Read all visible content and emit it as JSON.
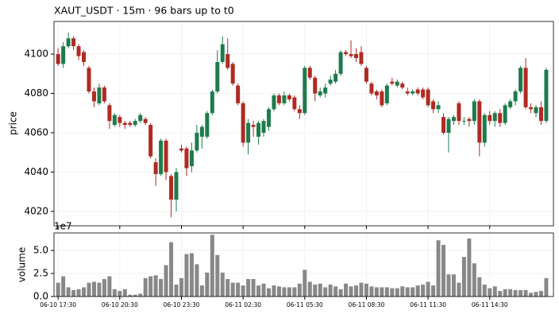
{
  "chart_data": {
    "type": "candlestick",
    "title": "XAUT_USDT  ·  15m  ·  96 bars up to t0",
    "y_label": "price",
    "volume_label": "volume",
    "volume_offset_label": "1e7",
    "categories": [
      "06-10 17:30",
      null,
      null,
      null,
      null,
      null,
      null,
      null,
      null,
      null,
      null,
      null,
      "06-10 20:30",
      null,
      null,
      null,
      null,
      null,
      null,
      null,
      null,
      null,
      null,
      null,
      "06-10 23:30",
      null,
      null,
      null,
      null,
      null,
      null,
      null,
      null,
      null,
      null,
      null,
      "06-11 02:30",
      null,
      null,
      null,
      null,
      null,
      null,
      null,
      null,
      null,
      null,
      null,
      "06-11 05:30",
      null,
      null,
      null,
      null,
      null,
      null,
      null,
      null,
      null,
      null,
      null,
      "06-11 08:30",
      null,
      null,
      null,
      null,
      null,
      null,
      null,
      null,
      null,
      null,
      null,
      "06-11 11:30",
      null,
      null,
      null,
      null,
      null,
      null,
      null,
      null,
      null,
      null,
      null,
      "06-11 14:30",
      null,
      null,
      null,
      null,
      null,
      null,
      null,
      null,
      null,
      null,
      null
    ],
    "open": [
      4100,
      4095,
      4104,
      4108,
      4104,
      4101,
      4093,
      4081,
      4075,
      4083,
      4074,
      4064,
      4068,
      4065,
      4065,
      4064,
      4066,
      4067,
      4064,
      4045,
      4039,
      4056,
      4038,
      4026,
      4052,
      4052,
      4043,
      4051,
      4058,
      4058,
      4070,
      4081,
      4096,
      4100,
      4095,
      4084,
      4075,
      4055,
      4064,
      4058,
      4060,
      4063,
      4072,
      4079,
      4075,
      4079,
      4078,
      4072,
      4070,
      4093,
      4088,
      4079,
      4080,
      4085,
      4086,
      4090,
      4101,
      4100,
      4100,
      4101,
      4093,
      4085,
      4081,
      4081,
      4075,
      4086,
      4084,
      4085,
      4081,
      4080,
      4082,
      4082,
      4082,
      4076,
      4072,
      4068,
      4060,
      4066,
      4075,
      4066,
      4067,
      4066,
      4076,
      4055,
      4069,
      4066,
      4070,
      4065,
      4073,
      4076,
      4081,
      4093,
      4073,
      4070,
      4073,
      4066
    ],
    "high": [
      4103,
      4106,
      4111,
      4109,
      4105,
      4102,
      4094,
      4083,
      4085,
      4084,
      4075,
      4070,
      4069,
      4066,
      4066,
      4067,
      4070,
      4068,
      4065,
      4047,
      4057,
      4057,
      4039,
      4042,
      4054,
      4053,
      4055,
      4064,
      4064,
      4071,
      4082,
      4102,
      4109,
      4108,
      4096,
      4085,
      4076,
      4067,
      4066,
      4066,
      4067,
      4073,
      4080,
      4080,
      4081,
      4080,
      4079,
      4074,
      4094,
      4094,
      4089,
      4083,
      4085,
      4089,
      4092,
      4102,
      4102,
      4107,
      4103,
      4104,
      4094,
      4086,
      4082,
      4082,
      4085,
      4088,
      4087,
      4086,
      4083,
      4082,
      4083,
      4083,
      4083,
      4077,
      4076,
      4070,
      4068,
      4069,
      4076,
      4068,
      4068,
      4077,
      4077,
      4070,
      4071,
      4071,
      4072,
      4075,
      4077,
      4082,
      4094,
      4098,
      4075,
      4074,
      4076,
      4093
    ],
    "low": [
      4094,
      4093,
      4103,
      4102,
      4097,
      4094,
      4080,
      4073,
      4074,
      4075,
      4062,
      4063,
      4063,
      4062,
      4063,
      4063,
      4065,
      4064,
      4047,
      4033,
      4038,
      4036,
      4017,
      4020,
      4050,
      4038,
      4040,
      4050,
      4052,
      4057,
      4069,
      4080,
      4095,
      4092,
      4084,
      4074,
      4053,
      4049,
      4058,
      4054,
      4058,
      4061,
      4071,
      4074,
      4074,
      4076,
      4071,
      4067,
      4069,
      4087,
      4076,
      4078,
      4078,
      4084,
      4085,
      4089,
      4099,
      4098,
      4096,
      4094,
      4085,
      4079,
      4077,
      4073,
      4074,
      4084,
      4083,
      4082,
      4079,
      4079,
      4079,
      4077,
      4073,
      4070,
      4070,
      4059,
      4050,
      4064,
      4064,
      4064,
      4063,
      4064,
      4048,
      4053,
      4064,
      4063,
      4063,
      4064,
      4072,
      4074,
      4080,
      4072,
      4070,
      4068,
      4064,
      4065
    ],
    "close": [
      4095,
      4104,
      4108,
      4104,
      4099,
      4096,
      4081,
      4076,
      4083,
      4076,
      4066,
      4069,
      4065,
      4064,
      4064,
      4066,
      4069,
      4065,
      4048,
      4039,
      4056,
      4040,
      4026,
      4040,
      4051,
      4042,
      4051,
      4060,
      4063,
      4070,
      4081,
      4096,
      4105,
      4093,
      4085,
      4075,
      4055,
      4065,
      4063,
      4065,
      4066,
      4072,
      4079,
      4075,
      4079,
      4077,
      4072,
      4070,
      4093,
      4088,
      4080,
      4081,
      4083,
      4087,
      4090,
      4101,
      4100,
      4099,
      4098,
      4095,
      4086,
      4080,
      4079,
      4074,
      4084,
      4085,
      4086,
      4083,
      4080,
      4081,
      4080,
      4078,
      4074,
      4072,
      4074,
      4060,
      4067,
      4068,
      4066,
      4066,
      4066,
      4076,
      4055,
      4069,
      4066,
      4070,
      4065,
      4074,
      4076,
      4081,
      4093,
      4073,
      4072,
      4073,
      4066,
      4092
    ],
    "volume": [
      1.5,
      2.2,
      1.0,
      0.7,
      0.8,
      1.0,
      1.5,
      1.6,
      1.5,
      1.9,
      2.2,
      0.8,
      0.6,
      0.8,
      0.2,
      0.2,
      0.3,
      2.0,
      2.2,
      2.3,
      1.9,
      3.4,
      5.9,
      1.3,
      2.0,
      4.6,
      4.7,
      3.5,
      1.2,
      2.6,
      6.7,
      4.5,
      2.6,
      1.9,
      1.5,
      1.5,
      1.2,
      1.9,
      1.9,
      1.2,
      1.4,
      0.9,
      1.2,
      1.1,
      1.0,
      1.0,
      1.0,
      1.4,
      2.9,
      1.6,
      1.3,
      1.4,
      1.0,
      1.3,
      1.1,
      0.8,
      1.4,
      1.1,
      1.2,
      1.5,
      1.4,
      1.1,
      1.0,
      1.0,
      1.0,
      0.9,
      0.9,
      1.1,
      1.0,
      1.0,
      1.2,
      1.3,
      1.6,
      1.2,
      6.1,
      5.6,
      2.4,
      2.4,
      1.5,
      4.3,
      6.3,
      3.6,
      2.1,
      1.3,
      0.9,
      1.1,
      0.6,
      0.8,
      0.8,
      0.7,
      0.7,
      0.7,
      0.4,
      0.5,
      0.6,
      2.0
    ],
    "ylim": [
      4012.7,
      4116.6
    ],
    "yticks": [
      4020,
      4040,
      4060,
      4080,
      4100
    ],
    "volume_ylim": [
      0,
      6.9
    ],
    "volume_yticks": [
      {
        "value": 0,
        "label": "0.0"
      },
      {
        "value": 2.5,
        "label": "2.5"
      },
      {
        "value": 5,
        "label": "5.0"
      }
    ],
    "up_color": "#1e7b4c",
    "down_color": "#b02a22",
    "volume_color": "#888888",
    "grid": true
  }
}
